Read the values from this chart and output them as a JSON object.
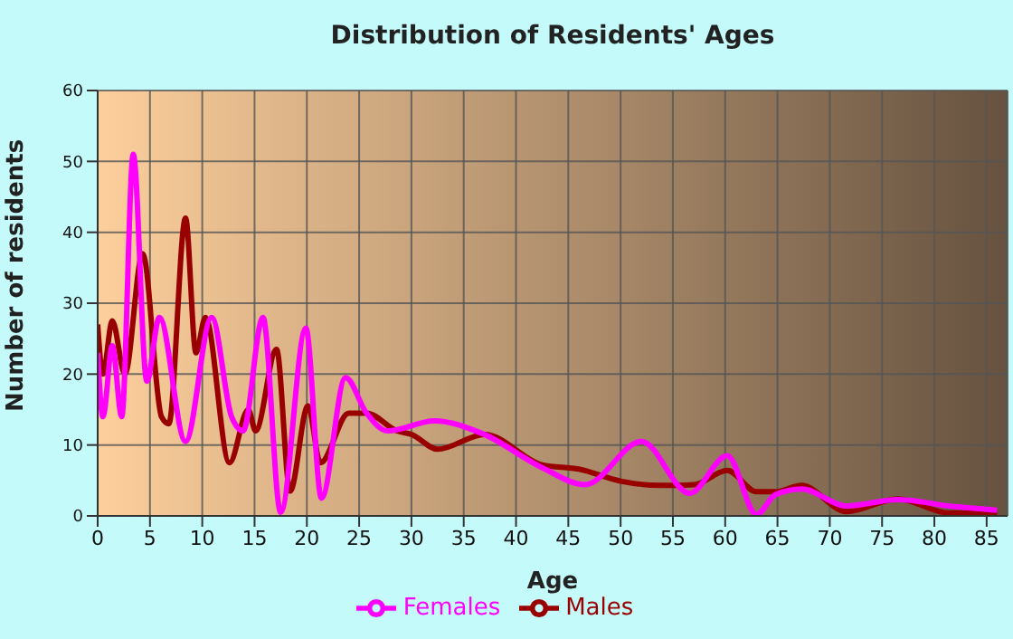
{
  "chart_data": {
    "type": "line",
    "title": "Distribution of Residents' Ages",
    "xlabel": "Age",
    "ylabel": "Number of residents",
    "xlim": [
      0,
      87
    ],
    "xticks": [
      0,
      5,
      10,
      15,
      20,
      25,
      30,
      35,
      40,
      45,
      50,
      55,
      60,
      65,
      70,
      75,
      80,
      85
    ],
    "ylim": [
      0,
      60
    ],
    "yticks": [
      0,
      10,
      20,
      30,
      40,
      50,
      60
    ],
    "grid": true,
    "legend": "bottom",
    "marker": "none",
    "line_style": "solid",
    "series": [
      {
        "name": "Males",
        "color": "#990000",
        "x": [
          0,
          0.5,
          1.4,
          2.6,
          4.3,
          6.1,
          6.8,
          8.4,
          9.4,
          10.3,
          12.6,
          14.4,
          15.1,
          17.1,
          18.4,
          20.1,
          21.3,
          24,
          25.7,
          28.6,
          30,
          32.5,
          37,
          42.5,
          46,
          50,
          53.7,
          57,
          60.2,
          63,
          64.8,
          67.3,
          71.6,
          76.5,
          81.4,
          86
        ],
        "values": [
          27,
          20,
          27.5,
          20,
          37,
          14,
          13,
          42,
          23,
          28,
          7.5,
          15,
          12,
          23.5,
          3.5,
          15.5,
          7.5,
          14.5,
          14.5,
          12,
          11.5,
          9.4,
          11.5,
          7.2,
          6.6,
          4.9,
          4.3,
          4.4,
          6.4,
          3.4,
          3.4,
          4.3,
          0.6,
          2.4,
          0.4,
          0.4
        ]
      },
      {
        "name": "Females",
        "color": "#ff00ff",
        "x": [
          0,
          0.5,
          1.4,
          2.3,
          3.4,
          4.7,
          5.9,
          8.4,
          10.9,
          12.8,
          13.9,
          15.8,
          17.5,
          19.9,
          21.4,
          23.7,
          25.7,
          27.7,
          32.2,
          36.8,
          42.5,
          46.6,
          52,
          56.6,
          60.2,
          63,
          64.8,
          67.3,
          71.6,
          76.5,
          81.4,
          86
        ],
        "values": [
          23,
          14,
          24,
          14,
          51,
          19,
          28,
          10.5,
          28,
          14,
          12,
          28,
          0.5,
          26.5,
          2.5,
          19.5,
          14.5,
          12,
          13.4,
          11.6,
          6.8,
          4.4,
          10.5,
          3.2,
          8.5,
          0.2,
          3,
          3.8,
          1.4,
          2.3,
          1.4,
          0.8
        ]
      }
    ]
  }
}
